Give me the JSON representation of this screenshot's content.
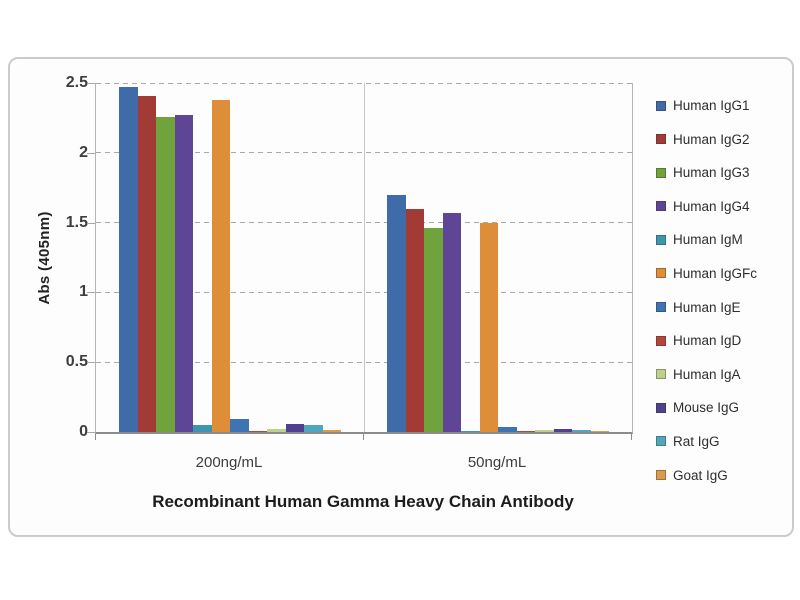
{
  "chart_data": {
    "type": "bar",
    "x_title": "Recombinant Human Gamma Heavy Chain Antibody",
    "y_title": "Abs (405nm)",
    "categories": [
      "200ng/mL",
      "50ng/mL"
    ],
    "y_ticks": [
      0,
      0.5,
      1,
      1.5,
      2,
      2.5
    ],
    "ylim": [
      0,
      2.5
    ],
    "grid": "dashed-horizontal",
    "legend_position": "right",
    "series": [
      {
        "name": "Human IgG1",
        "color": "#3F6BA8",
        "values": [
          2.47,
          1.7
        ]
      },
      {
        "name": "Human IgG2",
        "color": "#A23B35",
        "values": [
          2.41,
          1.6
        ]
      },
      {
        "name": "Human IgG3",
        "color": "#71A33C",
        "values": [
          2.26,
          1.46
        ]
      },
      {
        "name": "Human IgG4",
        "color": "#5E4596",
        "values": [
          2.27,
          1.57
        ]
      },
      {
        "name": "Human IgM",
        "color": "#3E96AE",
        "values": [
          0.05,
          0.01
        ]
      },
      {
        "name": "Human IgGFc",
        "color": "#DE8E38",
        "values": [
          2.38,
          1.5
        ]
      },
      {
        "name": "Human IgE",
        "color": "#3E74B4",
        "values": [
          0.09,
          0.035
        ]
      },
      {
        "name": "Human IgD",
        "color": "#B8443E",
        "values": [
          0.01,
          0.005
        ]
      },
      {
        "name": "Human IgA",
        "color": "#BDD08C",
        "values": [
          0.025,
          0.015
        ]
      },
      {
        "name": "Mouse IgG",
        "color": "#50418F",
        "values": [
          0.06,
          0.025
        ]
      },
      {
        "name": "Rat IgG",
        "color": "#4FA6BE",
        "values": [
          0.05,
          0.015
        ]
      },
      {
        "name": "Goat IgG",
        "color": "#DC9A4C",
        "values": [
          0.012,
          0.006
        ]
      }
    ]
  }
}
